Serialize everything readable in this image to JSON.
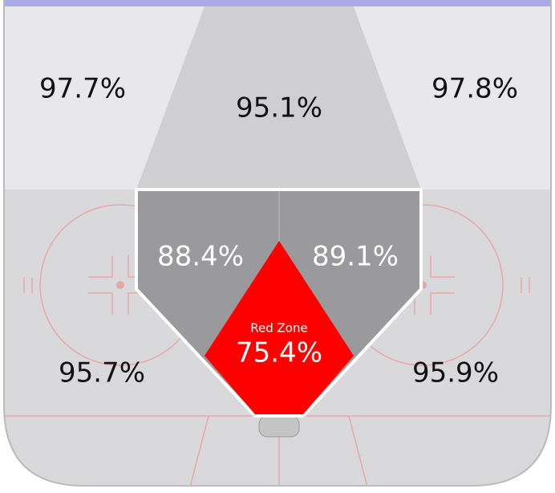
{
  "zones": [
    {
      "name": "top-left",
      "label": "97.7%"
    },
    {
      "name": "top-center",
      "label": "95.1%"
    },
    {
      "name": "top-right",
      "label": "97.8%"
    },
    {
      "name": "slot-left",
      "label": "88.4%"
    },
    {
      "name": "slot-right",
      "label": "89.1%"
    },
    {
      "name": "bottom-left",
      "label": "95.7%"
    },
    {
      "name": "bottom-right",
      "label": "95.9%"
    }
  ],
  "red_zone": {
    "title": "Red Zone",
    "label": "75.4%"
  }
}
